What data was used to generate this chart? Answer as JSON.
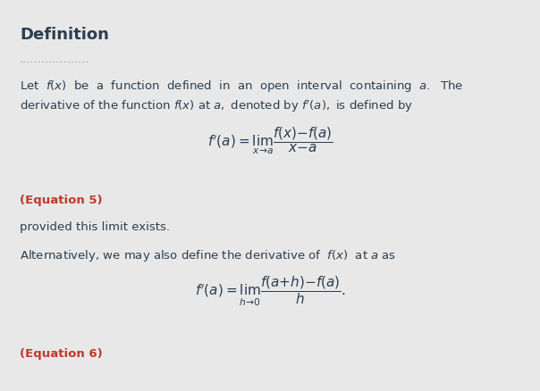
{
  "background_color": "#e8e8e8",
  "title_text": "Definition",
  "title_fontsize": 13,
  "title_color": "#2c3e50",
  "dots_text": "...................",
  "dots_color": "#6a9ab0",
  "body_text_color": "#2c3e50",
  "eq5_color": "#c0392b",
  "eq6_color": "#c0392b",
  "body_fontsize": 9.5,
  "eq_fontsize": 11,
  "line1": "Let  $f(x)$  be  a  function  defined  in  an  open  interval  containing  $a.$  The",
  "line2": "derivative of the function $f(x)$ at $a,$ denoted by $f'(a),$ is defined by",
  "eq1": "$f'(a) = \\lim_{x \\to a}\\dfrac{f(x) - f(a)}{x - a}$",
  "eq5_label": "(Equation 5)",
  "line3": "provided this limit exists.",
  "line4": "Alternatively, we may also define the derivative of  $f(x)$  at $a$ as",
  "eq2": "$f'(a) = \\lim_{h \\to 0}\\dfrac{f(a+h) - f(a)}{h}.$",
  "eq6_label": "(Equation 6)",
  "figwidth": 6.04,
  "figheight": 4.38,
  "dpi": 100
}
